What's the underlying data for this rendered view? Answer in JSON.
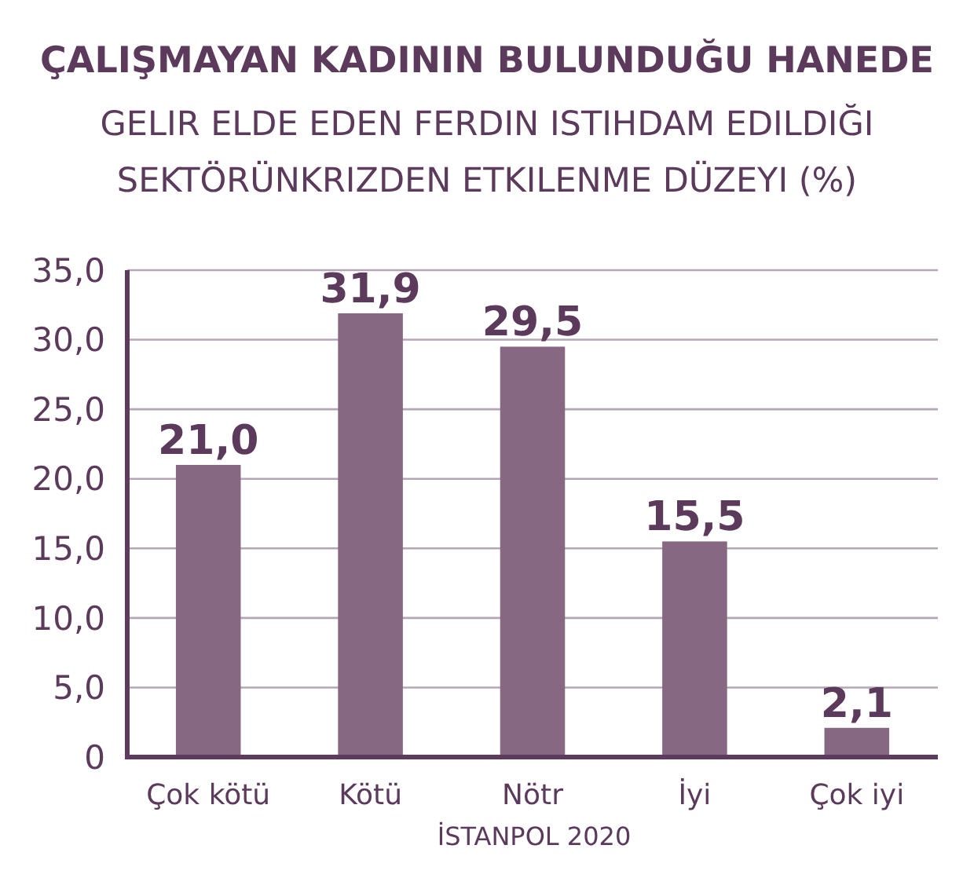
{
  "chart_data": {
    "type": "bar",
    "title": "ÇALIŞMAYAN KADININ BULUNDUĞU HANEDE",
    "subtitle": "GELIR ELDE EDEN FERDIN ISTIHDAM EDILDIĞI\nSEKTÖRÜNKRIZDEN ETKILENME DÜZEYI (%)",
    "categories": [
      "Çok kötü",
      "Kötü",
      "Nötr",
      "İyi",
      "Çok iyi"
    ],
    "values": [
      21.0,
      31.9,
      29.5,
      15.5,
      2.1
    ],
    "value_labels": [
      "21,0",
      "31,9",
      "29,5",
      "15,5",
      "2,1"
    ],
    "color": "#866882",
    "ylim": [
      0,
      35
    ],
    "yticks": [
      0,
      {
        "value": 5,
        "label": "5,0"
      },
      {
        "value": 10,
        "label": "10,0"
      },
      {
        "value": 15,
        "label": "15,0"
      },
      {
        "value": 20,
        "label": "20,0"
      },
      {
        "value": 25,
        "label": "25,0"
      },
      {
        "value": 30,
        "label": "30,0"
      },
      {
        "value": 35,
        "label": "35,0"
      }
    ],
    "grid": "y",
    "annotations": [
      "İSTANPOL 2020"
    ]
  }
}
